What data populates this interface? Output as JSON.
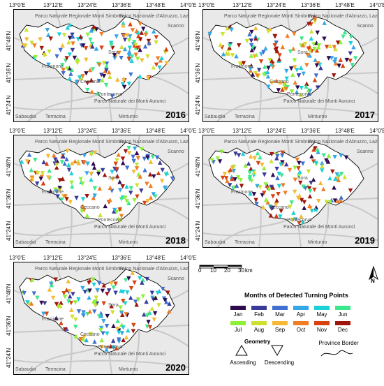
{
  "panels": [
    {
      "year": "2016"
    },
    {
      "year": "2017"
    },
    {
      "year": "2018"
    },
    {
      "year": "2019"
    },
    {
      "year": "2020"
    }
  ],
  "lon_labels": [
    "13°0'E",
    "13°12'E",
    "13°24'E",
    "13°36'E",
    "13°48'E",
    "14°0'E"
  ],
  "lat_labels": [
    "41°48'N",
    "41°36'N",
    "41°24'N"
  ],
  "place_labels": [
    "Parco Naturale Regionale Monti Simbruini",
    "Parco Nazionale d'Abruzzo, Lazio e Molise",
    "Frosinone",
    "Ceccano",
    "Pontecorvo",
    "Sora",
    "Parco Naturale dei Monti Aurunci",
    "Sabaudia",
    "Terracina",
    "Minturno",
    "Scanno"
  ],
  "scalebar": {
    "ticks": [
      "0",
      "10",
      "20",
      "30"
    ],
    "unit": "km"
  },
  "north_label": "N",
  "legend": {
    "title": "Months of Detected Turning Points",
    "months": [
      {
        "label": "Jan",
        "color": "#2d0a4e"
      },
      {
        "label": "Feb",
        "color": "#3b3a9a"
      },
      {
        "label": "Mar",
        "color": "#3f6fd0"
      },
      {
        "label": "Apr",
        "color": "#35a7e6"
      },
      {
        "label": "May",
        "color": "#1cd0d8"
      },
      {
        "label": "Jun",
        "color": "#3ae88e"
      },
      {
        "label": "Jul",
        "color": "#8ff03a"
      },
      {
        "label": "Aug",
        "color": "#cfe030"
      },
      {
        "label": "Sep",
        "color": "#f5b935"
      },
      {
        "label": "Oct",
        "color": "#f07d25"
      },
      {
        "label": "Nov",
        "color": "#d8410f"
      },
      {
        "label": "Dec",
        "color": "#a0150b"
      }
    ],
    "geometry_title": "Geometry",
    "ascending_label": "Ascending",
    "descending_label": "Descending",
    "border_label": "Province Border"
  }
}
